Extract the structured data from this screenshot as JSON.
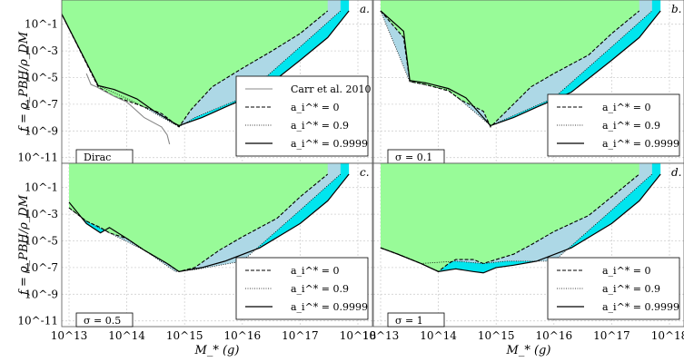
{
  "figure": {
    "ylabel": "f = ρ_PBH/ρ_DM",
    "xlabel": "M_* (g)"
  },
  "chart_data": [
    {
      "type": "area",
      "panel": "a.",
      "tag": "Dirac",
      "xscale": "log",
      "yscale": "log",
      "xlim": [
        10000000000000.0,
        1e+18
      ],
      "ylim": [
        1e-12,
        1
      ],
      "legend_position": "lower-right",
      "series": [
        {
          "name": "a_i^* = 0",
          "style": "dashed",
          "fill": "#98fb98",
          "x": [
            7000000000000.0,
            32000000000000.0,
            60000000000000.0,
            150000000000000.0,
            400000000000000.0,
            650000000000000.0,
            800000000000000.0,
            1300000000000000.0,
            3000000000000000.0,
            1e+16,
            3e+16,
            1e+17,
            3e+17
          ],
          "y": [
            1,
            2e-06,
            4e-07,
            1e-07,
            2e-08,
            4e-09,
            2e-09,
            4e-08,
            2e-06,
            5e-05,
            0.0008,
            0.02,
            1
          ]
        },
        {
          "name": "a_i^* = 0.9",
          "style": "dotted",
          "fill": "#add8e6",
          "x": [
            7000000000000.0,
            32000000000000.0,
            150000000000000.0,
            800000000000000.0,
            1500000000000000.0,
            1e+16,
            1e+17,
            5e+17
          ],
          "y": [
            1,
            2.5e-06,
            1.2e-07,
            2e-09,
            1e-08,
            3e-07,
            0.002,
            1
          ]
        },
        {
          "name": "a_i^* = 0.9999",
          "style": "solid",
          "fill": "#00e5ee",
          "x": [
            7000000000000.0,
            32000000000000.0,
            60000000000000.0,
            150000000000000.0,
            300000000000000.0,
            650000000000000.0,
            800000000000000.0,
            2000000000000000.0,
            5000000000000000.0,
            2e+16,
            1e+17,
            3e+17,
            7e+17
          ],
          "y": [
            1,
            2.5e-06,
            1.3e-06,
            2.5e-07,
            3e-08,
            4e-09,
            2.5e-09,
            1e-08,
            6e-08,
            8e-07,
            0.0002,
            0.01,
            1
          ]
        },
        {
          "name": "Carr et al. 2010",
          "style": "solid-gray",
          "x": [
            20000000000000.0,
            24000000000000.0,
            30000000000000.0,
            40000000000000.0,
            60000000000000.0,
            100000000000000.0,
            200000000000000.0,
            400000000000000.0,
            500000000000000.0,
            550000000000000.0
          ],
          "y": [
            2e-05,
            3e-06,
            2e-06,
            1e-06,
            4e-07,
            1.5e-07,
            1e-08,
            2e-09,
            5e-10,
            1e-10
          ]
        }
      ]
    },
    {
      "type": "area",
      "panel": "b.",
      "tag": "σ = 0.1",
      "xscale": "log",
      "yscale": "log",
      "xlim": [
        10000000000000.0,
        1e+18
      ],
      "ylim": [
        1e-12,
        1
      ],
      "legend_position": "lower-right",
      "series": [
        {
          "name": "a_i^* = 0",
          "style": "dashed",
          "x": [
            10000000000000.0,
            25000000000000.0,
            32000000000000.0,
            60000000000000.0,
            150000000000000.0,
            250000000000000.0,
            600000000000000.0,
            800000000000000.0,
            1500000000000000.0,
            4000000000000000.0,
            1e+16,
            4e+16,
            1e+17,
            3e+17
          ],
          "y": [
            1,
            0.01,
            5e-06,
            3e-06,
            1e-06,
            2e-07,
            3e-08,
            2e-09,
            3e-08,
            2e-06,
            2e-05,
            0.0005,
            0.02,
            1
          ]
        },
        {
          "name": "a_i^* = 0.9",
          "style": "dotted",
          "x": [
            10000000000000.0,
            32000000000000.0,
            150000000000000.0,
            800000000000000.0,
            1500000000000000.0,
            1e+16,
            1e+17,
            5e+17
          ],
          "y": [
            1,
            5e-06,
            1.2e-06,
            2.5e-09,
            8e-09,
            3e-07,
            0.002,
            1
          ]
        },
        {
          "name": "a_i^* = 0.9999",
          "style": "solid",
          "x": [
            10000000000000.0,
            25000000000000.0,
            32000000000000.0,
            60000000000000.0,
            150000000000000.0,
            300000000000000.0,
            600000000000000.0,
            800000000000000.0,
            2000000000000000.0,
            5000000000000000.0,
            2e+16,
            1e+17,
            3e+17,
            7e+17
          ],
          "y": [
            1,
            0.03,
            6e-06,
            4e-06,
            1.5e-06,
            3e-07,
            1e-08,
            2.5e-09,
            1e-08,
            6e-08,
            8e-07,
            0.0002,
            0.01,
            1
          ]
        }
      ]
    },
    {
      "type": "area",
      "panel": "c.",
      "tag": "σ = 0.5",
      "xscale": "log",
      "yscale": "log",
      "xlim": [
        10000000000000.0,
        1e+18
      ],
      "ylim": [
        1e-12,
        1
      ],
      "legend_position": "lower-right",
      "series": [
        {
          "name": "a_i^* = 0",
          "style": "dashed",
          "x": [
            10000000000000.0,
            20000000000000.0,
            35000000000000.0,
            50000000000000.0,
            100000000000000.0,
            200000000000000.0,
            500000000000000.0,
            800000000000000.0,
            1500000000000000.0,
            4000000000000000.0,
            1e+16,
            4e+16,
            1e+17,
            3e+17
          ],
          "y": [
            0.003,
            0.0003,
            0.0001,
            4e-05,
            1.5e-05,
            2e-06,
            2e-07,
            5e-08,
            1e-07,
            2e-06,
            2e-05,
            0.0005,
            0.02,
            1
          ]
        },
        {
          "name": "a_i^* = 0.9",
          "style": "dotted",
          "x": [
            10000000000000.0,
            20000000000000.0,
            50000000000000.0,
            200000000000000.0,
            700000000000000.0,
            1500000000000000.0,
            1e+16,
            1e+17,
            5e+17
          ],
          "y": [
            0.003,
            0.0003,
            4e-05,
            2e-06,
            5e-08,
            7e-08,
            3e-07,
            0.002,
            1
          ]
        },
        {
          "name": "a_i^* = 0.9999",
          "style": "solid",
          "x": [
            10000000000000.0,
            20000000000000.0,
            35000000000000.0,
            50000000000000.0,
            100000000000000.0,
            200000000000000.0,
            500000000000000.0,
            800000000000000.0,
            2000000000000000.0,
            5000000000000000.0,
            2e+16,
            1e+17,
            3e+17,
            7e+17
          ],
          "y": [
            0.008,
            0.0002,
            4e-05,
            0.0001,
            1.5e-05,
            2e-06,
            2e-07,
            5e-08,
            1e-07,
            3e-07,
            3e-06,
            0.0002,
            0.01,
            1
          ]
        }
      ]
    },
    {
      "type": "area",
      "panel": "d.",
      "tag": "σ = 1",
      "xscale": "log",
      "yscale": "log",
      "xlim": [
        10000000000000.0,
        1e+18
      ],
      "ylim": [
        1e-12,
        1
      ],
      "legend_position": "lower-right",
      "series": [
        {
          "name": "a_i^* = 0",
          "style": "dashed",
          "x": [
            10000000000000.0,
            20000000000000.0,
            50000000000000.0,
            100000000000000.0,
            150000000000000.0,
            200000000000000.0,
            400000000000000.0,
            600000000000000.0,
            1000000000000000.0,
            2000000000000000.0,
            4000000000000000.0,
            1e+16,
            4e+16,
            1e+17,
            3e+17
          ],
          "y": [
            3e-06,
            1e-06,
            2e-07,
            5e-08,
            2e-07,
            4e-07,
            4e-07,
            2e-07,
            4e-07,
            1e-06,
            5e-06,
            5e-05,
            0.0008,
            0.02,
            1
          ]
        },
        {
          "name": "a_i^* = 0.9",
          "style": "dotted",
          "x": [
            10000000000000.0,
            50000000000000.0,
            200000000000000.0,
            600000000000000.0,
            1500000000000000.0,
            1e+16,
            1e+17,
            5e+17
          ],
          "y": [
            3e-06,
            2e-07,
            3e-07,
            2e-07,
            3e-07,
            3e-07,
            0.002,
            1
          ]
        },
        {
          "name": "a_i^* = 0.9999",
          "style": "solid",
          "x": [
            10000000000000.0,
            20000000000000.0,
            50000000000000.0,
            100000000000000.0,
            200000000000000.0,
            400000000000000.0,
            600000000000000.0,
            1000000000000000.0,
            2000000000000000.0,
            5000000000000000.0,
            2e+16,
            1e+17,
            3e+17,
            7e+17
          ],
          "y": [
            3e-06,
            1e-06,
            2e-07,
            5e-08,
            8e-08,
            5e-08,
            4e-08,
            1e-07,
            1.5e-07,
            3e-07,
            3e-06,
            0.0002,
            0.01,
            1
          ]
        }
      ]
    }
  ]
}
